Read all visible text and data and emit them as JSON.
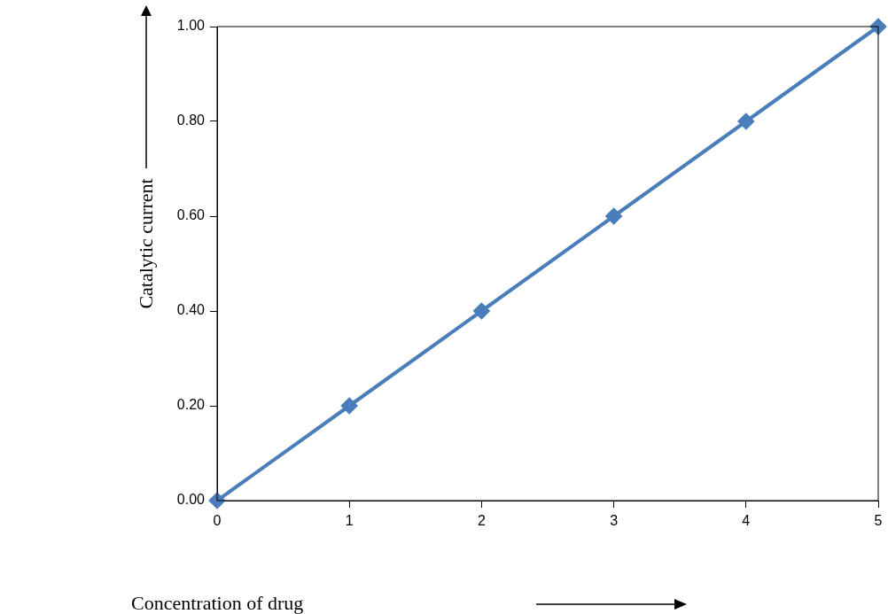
{
  "chart_data": {
    "type": "line",
    "xlabel": "Concentration of drug",
    "ylabel": "Catalytic current",
    "x": [
      0,
      1,
      2,
      3,
      4,
      5
    ],
    "series": [
      {
        "color": "#4a7ebb",
        "values": [
          0,
          0.2,
          0.4,
          0.6,
          0.8,
          1.0
        ]
      }
    ],
    "xlim": [
      0,
      5
    ],
    "xticks": [
      0,
      1,
      2,
      3,
      4,
      5
    ],
    "ylim": [
      0,
      1
    ],
    "yticks": [
      {
        "value": 0,
        "label": "0.00"
      },
      {
        "value": 0.2,
        "label": "0.20"
      },
      {
        "value": 0.4,
        "label": "0.40"
      },
      {
        "value": 0.6,
        "label": "0.60"
      },
      {
        "value": 0.8,
        "label": "0.80"
      },
      {
        "value": 1,
        "label": "1.00"
      }
    ],
    "grid": false,
    "legend": false,
    "marker": "diamond",
    "line_style": "solid"
  }
}
